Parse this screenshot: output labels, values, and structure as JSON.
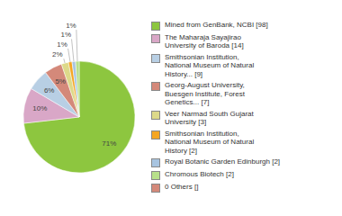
{
  "chart_data": {
    "type": "pie",
    "categories": [
      "Mined from GenBank, NCBI [98]",
      "The Maharaja Sayajirao\nUniversity of Baroda [14]",
      "Smithsonian Institution,\nNational Museum of Natural\nHistory... [9]",
      "Georg-August University,\nBuesgen Institute, Forest\nGenetics... [7]",
      "Veer Narmad South Gujarat\nUniversity [3]",
      "Smithsonian Institution,\nNational Museum of Natural\nHistory [2]",
      "Royal Botanic Garden Edinburgh [2]",
      "Chromous Biotech [2]",
      "0 Others []"
    ],
    "values": [
      71,
      10,
      6,
      5,
      2,
      1,
      1,
      1,
      0
    ],
    "value_labels": [
      "71%",
      "10%",
      "6%",
      "5%",
      "2%",
      "1%",
      "1%",
      "1%",
      null
    ],
    "colors": [
      "#8dc63f",
      "#d9a7c7",
      "#b8cfe4",
      "#d4897a",
      "#ddd98a",
      "#f5a623",
      "#a8c4e0",
      "#b8e08a",
      "#d4897a"
    ],
    "data_labels": true,
    "legend": "right"
  }
}
